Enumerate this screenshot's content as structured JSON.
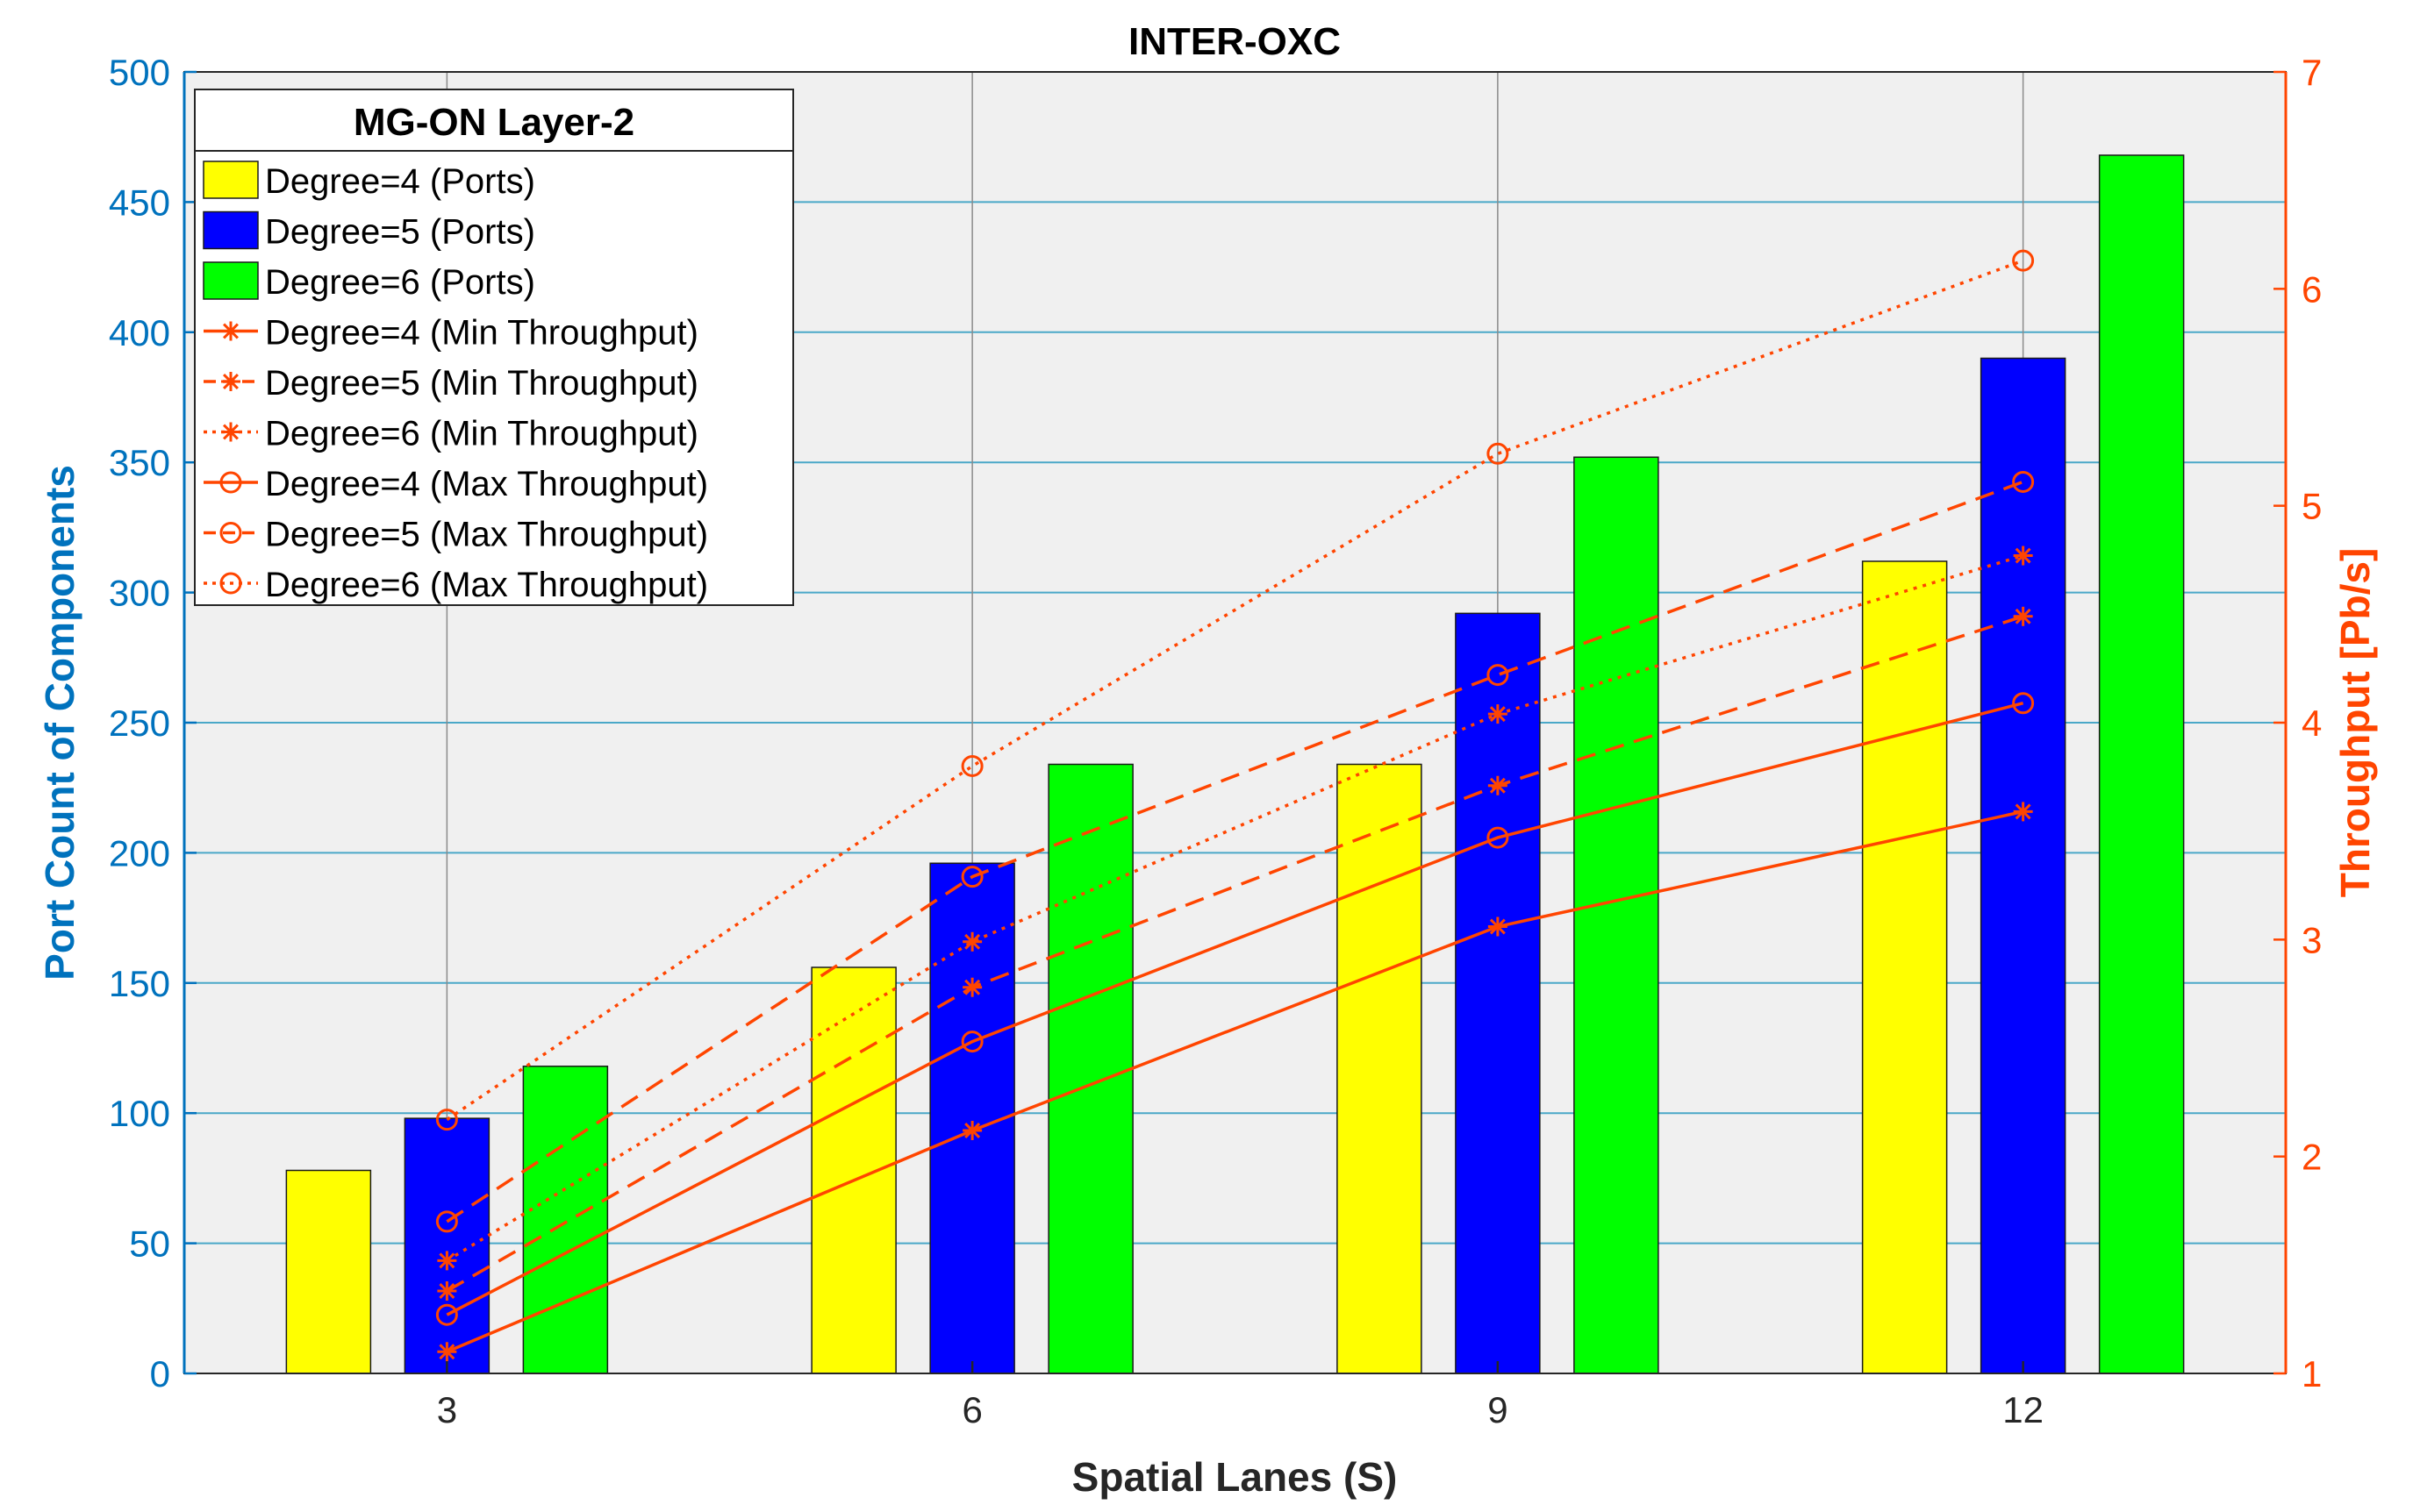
{
  "chart_data": {
    "type": "bar",
    "title": "INTER-OXC",
    "xlabel": "Spatial Lanes (S)",
    "ylabel": "Port Count of Components",
    "y2label": "Throughput [Pb/s]",
    "categories": [
      "3",
      "6",
      "9",
      "12"
    ],
    "ylim": [
      0,
      500
    ],
    "yticks": [
      "0",
      "50",
      "100",
      "150",
      "200",
      "250",
      "300",
      "350",
      "400",
      "450",
      "500"
    ],
    "y2lim": [
      1,
      7
    ],
    "y2ticks": [
      "1",
      "2",
      "3",
      "4",
      "5",
      "6",
      "7"
    ],
    "grid": true,
    "legend_title": "MG-ON Layer-2",
    "legend_position": "top-left",
    "bar_series": [
      {
        "name": "Degree=4 (Ports)",
        "values": [
          78,
          156,
          234,
          312
        ],
        "color": "#ffff00"
      },
      {
        "name": "Degree=5 (Ports)",
        "values": [
          98,
          196,
          292,
          390
        ],
        "color": "#0000ff"
      },
      {
        "name": "Degree=6 (Ports)",
        "values": [
          118,
          234,
          352,
          468
        ],
        "color": "#00ff00"
      }
    ],
    "line_series": [
      {
        "name": "Degree=4 (Min Throughput)",
        "values": [
          1.1,
          2.12,
          3.06,
          3.59
        ],
        "marker": "star",
        "dash": "solid",
        "x_offset": -1
      },
      {
        "name": "Degree=5 (Min Throughput)",
        "values": [
          1.38,
          2.78,
          3.71,
          4.49
        ],
        "marker": "star",
        "dash": "dashed",
        "x_offset": 0
      },
      {
        "name": "Degree=6 (Min Throughput)",
        "values": [
          1.52,
          2.99,
          4.04,
          4.77
        ],
        "marker": "star",
        "dash": "dotted",
        "x_offset": 0
      },
      {
        "name": "Degree=4 (Max Throughput)",
        "values": [
          1.27,
          2.53,
          3.47,
          4.09
        ],
        "marker": "circle",
        "dash": "solid",
        "x_offset": 0
      },
      {
        "name": "Degree=5 (Max Throughput)",
        "values": [
          1.7,
          3.29,
          4.22,
          5.11
        ],
        "marker": "circle",
        "dash": "dashed",
        "x_offset": 0
      },
      {
        "name": "Degree=6 (Max Throughput)",
        "values": [
          2.17,
          3.8,
          5.24,
          6.13
        ],
        "marker": "circle",
        "dash": "dotted",
        "x_offset": 0
      }
    ],
    "colors": {
      "left_axis": "#0072bd",
      "right_axis": "#ff4500",
      "line": "#ff4500",
      "grid": "#4aa8c8",
      "background": "#f0f0f0"
    }
  }
}
